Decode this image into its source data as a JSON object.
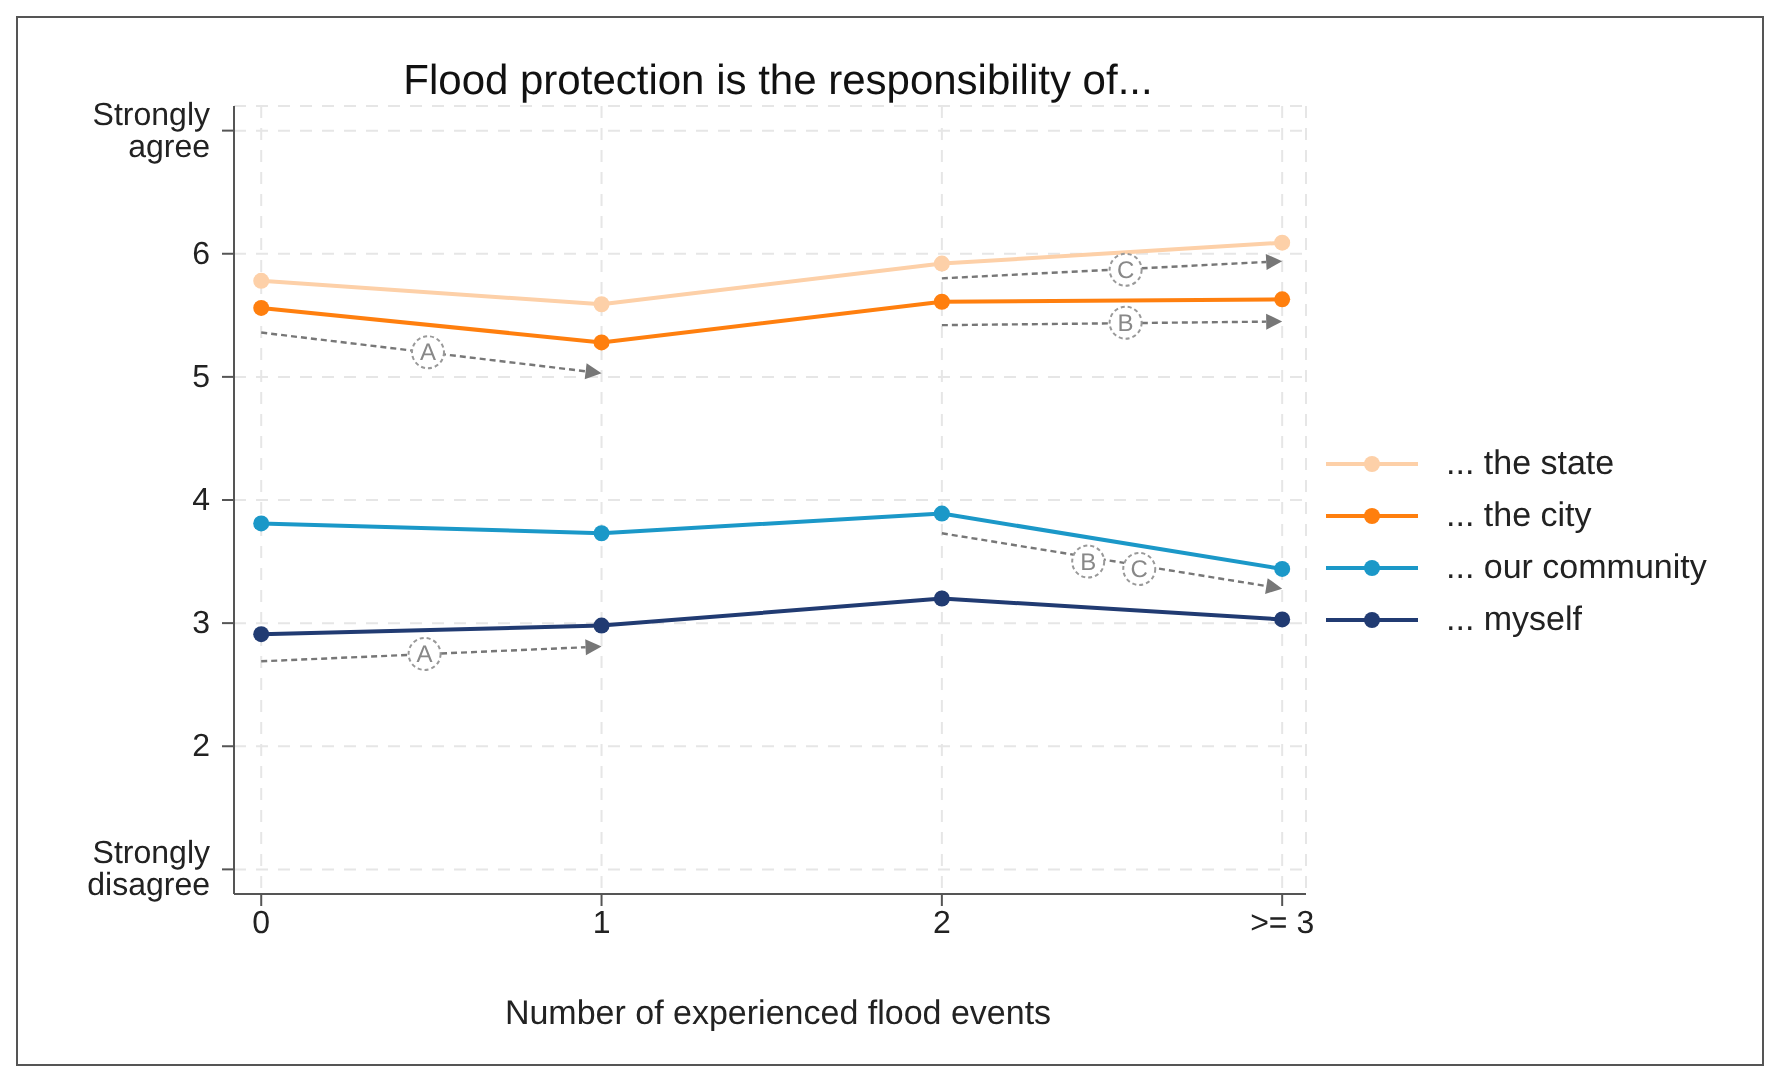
{
  "chart_data": {
    "type": "line",
    "title": "Flood protection is the responsibility of...",
    "xlabel": "Number of experienced flood events",
    "categories": [
      "0",
      "1",
      "2",
      ">= 3"
    ],
    "series": [
      {
        "name": "... the state",
        "color": "#fdd0a8",
        "values": [
          5.78,
          5.59,
          5.92,
          6.09
        ]
      },
      {
        "name": "... the city",
        "color": "#ff7f0e",
        "values": [
          5.56,
          5.28,
          5.61,
          5.63
        ]
      },
      {
        "name": "... our community",
        "color": "#1b98c8",
        "values": [
          3.81,
          3.73,
          3.89,
          3.44
        ]
      },
      {
        "name": "... myself",
        "color": "#213b72",
        "values": [
          2.91,
          2.98,
          3.2,
          3.03
        ]
      }
    ],
    "ylim": [
      0.8,
      7.2
    ],
    "yticks": [
      {
        "value": 1,
        "label": "Strongly disagree"
      },
      2,
      3,
      4,
      5,
      6,
      {
        "value": 7,
        "label": "Strongly agree"
      }
    ],
    "annotations": [
      {
        "text": "A",
        "y": 5.2
      },
      {
        "text": "C",
        "y": 5.87
      },
      {
        "text": "B",
        "y": 5.44
      },
      {
        "text": "A",
        "y": 2.75
      },
      {
        "text": "B",
        "y": 3.5
      },
      {
        "text": "C",
        "y": 3.44
      }
    ],
    "grid": true,
    "legend": "right",
    "marker": "circle",
    "line_style": "solid"
  }
}
